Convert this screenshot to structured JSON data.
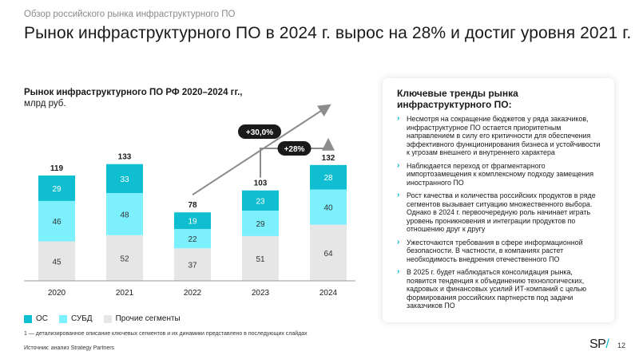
{
  "header": {
    "kicker": "Обзор российского рынка инфраструктурного ПО",
    "title": "Рынок инфраструктурного ПО в 2024 г. вырос на 28% и достиг уровня 2021 г."
  },
  "chart_data": {
    "type": "bar",
    "stacked": true,
    "title": "Рынок инфраструктурного ПО РФ 2020–2024 гг.,",
    "unit": "млрд руб.",
    "categories": [
      "2020",
      "2021",
      "2022",
      "2023",
      "2024"
    ],
    "series": [
      {
        "name": "Прочие сегменты",
        "values": [
          45,
          52,
          37,
          51,
          64
        ],
        "color": "#e6e6e6",
        "text_color": "#333333"
      },
      {
        "name": "СУБД",
        "values": [
          46,
          48,
          22,
          29,
          40
        ],
        "color": "#7cf0fc",
        "text_color": "#333333"
      },
      {
        "name": "ОС",
        "values": [
          29,
          33,
          19,
          23,
          28
        ],
        "color": "#0fbfd1",
        "text_color": "#ffffff"
      }
    ],
    "totals": [
      119,
      133,
      78,
      103,
      132
    ],
    "annotations": [
      {
        "label": "+30,0%",
        "from": "2022",
        "to": "2024"
      },
      {
        "label": "+28%",
        "from": "2023",
        "to": "2024"
      }
    ],
    "legend_order": [
      "ОС",
      "СУБД",
      "Прочие сегменты"
    ],
    "legend_position": "bottom-left"
  },
  "footnote": "1 — детализированное описание ключевых сегментов и их динамики представлено в последующих слайдах",
  "source": "Источник: анализ Strategy Partners",
  "trends": {
    "title": "Ключевые тренды рынка инфраструктурного ПО:",
    "items": [
      "Несмотря на сокращение бюджетов у ряда заказчиков, инфраструктурное ПО остается приоритетным направлением в силу его критичности для обеспечения эффективного функционирования бизнеса и устойчивости к угрозам внешнего и внутреннего характера",
      "Наблюдается переход от фрагментарного импортозамещения к комплексному подходу замещения иностранного ПО",
      "Рост качества и количества российских продуктов в ряде сегментов вызывает ситуацию множественного выбора. Однако в 2024 г. первоочередную роль начинает играть уровень проникновения и интеграции продуктов по отношению друг к другу",
      "Ужесточаются требования в сфере информационной безопасности. В частности, в компаниях растет необходимость внедрения отечественного ПО",
      "В 2025 г. будет наблюдаться консолидация рынка, появится тенденция к объединению технологических, кадровых и финансовых усилий ИТ-компаний с целью формирования российских партнерств под задачи заказчиков ПО"
    ]
  },
  "logo": {
    "text": "SP",
    "slash": "/"
  },
  "page_number": "12",
  "icons": {
    "bullet": "chevron-right-icon"
  }
}
